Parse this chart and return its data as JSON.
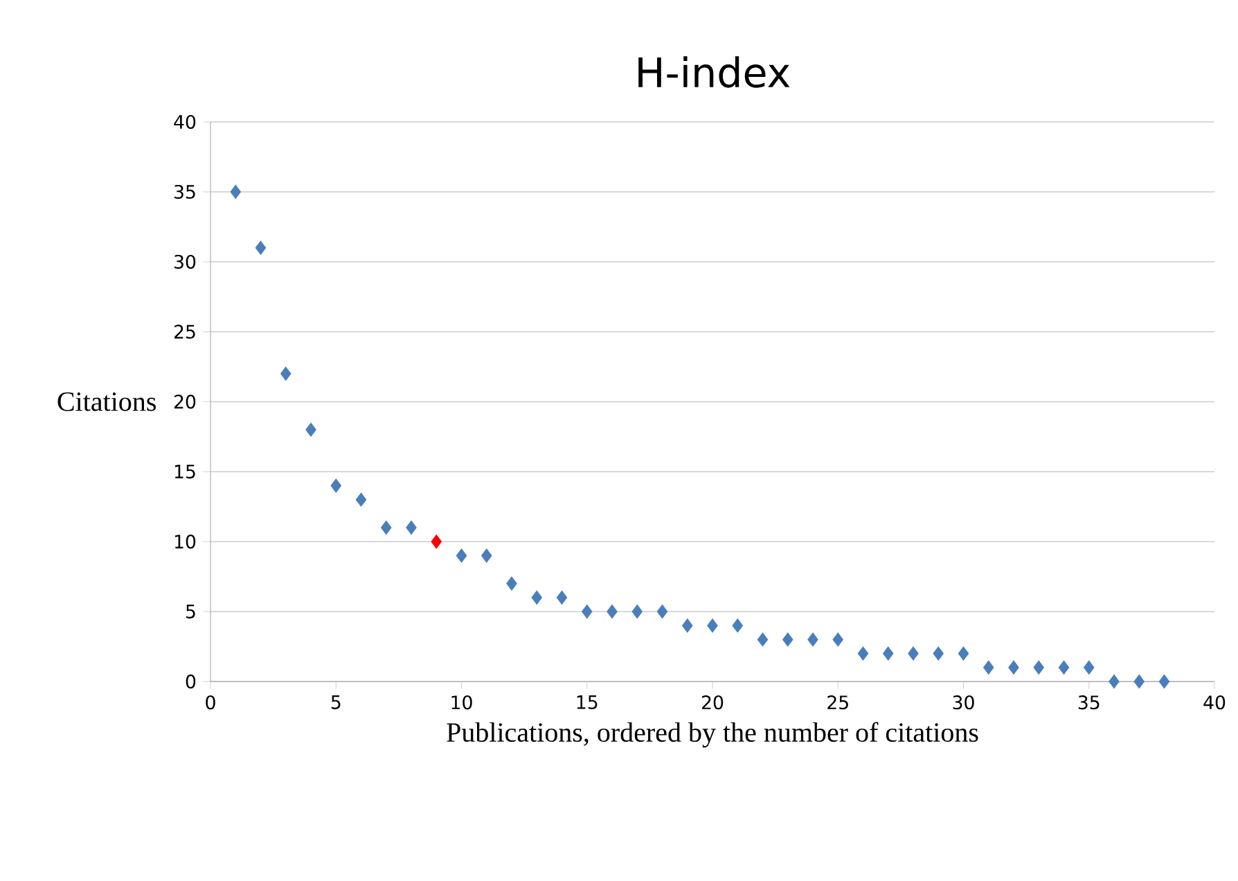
{
  "chart_data": {
    "type": "scatter",
    "title": "H-index",
    "xlabel": "Publications, ordered by the number of citations",
    "ylabel": "Citations",
    "x": [
      1,
      2,
      3,
      4,
      5,
      6,
      7,
      8,
      9,
      10,
      11,
      12,
      13,
      14,
      15,
      16,
      17,
      18,
      19,
      20,
      21,
      22,
      23,
      24,
      25,
      26,
      27,
      28,
      29,
      30,
      31,
      32,
      33,
      34,
      35,
      36,
      37,
      38
    ],
    "values": [
      35,
      31,
      22,
      18,
      14,
      13,
      11,
      11,
      10,
      9,
      9,
      7,
      6,
      6,
      5,
      5,
      5,
      5,
      4,
      4,
      4,
      3,
      3,
      3,
      3,
      2,
      2,
      2,
      2,
      2,
      1,
      1,
      1,
      1,
      1,
      0,
      0,
      0
    ],
    "colors": [
      "#4a7ebb",
      "#4a7ebb",
      "#4a7ebb",
      "#4a7ebb",
      "#4a7ebb",
      "#4a7ebb",
      "#4a7ebb",
      "#4a7ebb",
      "#ff0000",
      "#4a7ebb",
      "#4a7ebb",
      "#4a7ebb",
      "#4a7ebb",
      "#4a7ebb",
      "#4a7ebb",
      "#4a7ebb",
      "#4a7ebb",
      "#4a7ebb",
      "#4a7ebb",
      "#4a7ebb",
      "#4a7ebb",
      "#4a7ebb",
      "#4a7ebb",
      "#4a7ebb",
      "#4a7ebb",
      "#4a7ebb",
      "#4a7ebb",
      "#4a7ebb",
      "#4a7ebb",
      "#4a7ebb",
      "#4a7ebb",
      "#4a7ebb",
      "#4a7ebb",
      "#4a7ebb",
      "#4a7ebb",
      "#4a7ebb",
      "#4a7ebb",
      "#4a7ebb"
    ],
    "xlim": [
      0,
      40
    ],
    "xticks": [
      0,
      5,
      10,
      15,
      20,
      25,
      30,
      35,
      40
    ],
    "ylim": [
      0,
      40
    ],
    "yticks": [
      0,
      5,
      10,
      15,
      20,
      25,
      30,
      35,
      40
    ],
    "grid": "y",
    "marker": "diamond"
  }
}
